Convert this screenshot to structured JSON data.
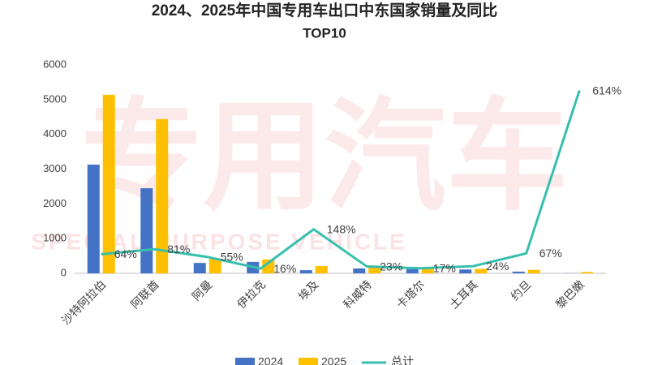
{
  "chart_data": {
    "type": "bar_line",
    "title": "2024、2025年中国专用车出口中东国家销量及同比",
    "subtitle": "TOP10",
    "watermark": "专用汽车",
    "watermark_subtitle": "SPECIAL PURPOSE VEHICLE",
    "categories": [
      "沙特阿拉伯",
      "阿联酋",
      "阿曼",
      "伊拉克",
      "埃及",
      "科威特",
      "卡塔尔",
      "土耳其",
      "约旦",
      "黎巴嫩"
    ],
    "series": [
      {
        "name": "2024",
        "type": "bar",
        "color": "#4472c4",
        "values": [
          3130,
          2450,
          300,
          330,
          90,
          140,
          120,
          110,
          50,
          5
        ]
      },
      {
        "name": "2025",
        "type": "bar",
        "color": "#ffc000",
        "values": [
          5140,
          4440,
          420,
          400,
          210,
          180,
          140,
          130,
          100,
          40
        ]
      },
      {
        "name": "总计",
        "type": "line",
        "axis": "y2",
        "color": "#36bfae",
        "values": [
          64,
          81,
          55,
          16,
          148,
          23,
          17,
          24,
          67,
          614
        ],
        "value_labels": [
          "64%",
          "81%",
          "55%",
          "16%",
          "148%",
          "23%",
          "17%",
          "24%",
          "67%",
          "614%"
        ]
      }
    ],
    "ylim": [
      0,
      6000
    ],
    "yticks": [
      0,
      1000,
      2000,
      3000,
      4000,
      5000,
      6000
    ],
    "y2lim": [
      0,
      700
    ],
    "grid": false,
    "legend": "bottom"
  }
}
